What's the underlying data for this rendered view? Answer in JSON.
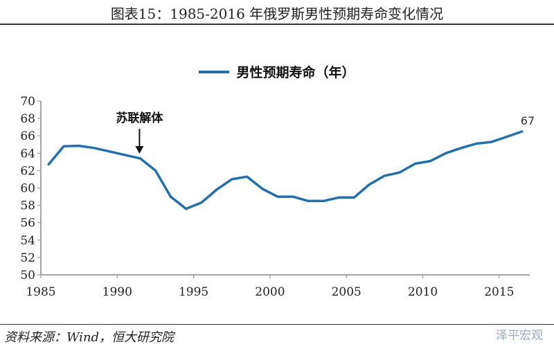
{
  "title": "图表15：1985-2016 年俄罗斯男性预期寿命变化情况",
  "source": "资料来源：Wind，恒大研究院",
  "watermark": "泽平宏观",
  "chart_data": {
    "type": "line",
    "title": "",
    "xlabel": "",
    "ylabel": "",
    "legend": "top-center",
    "x": [
      1985,
      1986,
      1987,
      1988,
      1989,
      1990,
      1991,
      1992,
      1993,
      1994,
      1995,
      1996,
      1997,
      1998,
      1999,
      2000,
      2001,
      2002,
      2003,
      2004,
      2005,
      2006,
      2007,
      2008,
      2009,
      2010,
      2011,
      2012,
      2013,
      2014,
      2015,
      2016
    ],
    "series": [
      {
        "name": "男性预期寿命（年）",
        "color": "#1f6fb4",
        "values": [
          62.7,
          64.8,
          64.85,
          64.6,
          64.2,
          63.8,
          63.4,
          62.0,
          59.0,
          57.6,
          58.3,
          59.8,
          61.0,
          61.3,
          59.9,
          59.0,
          59.0,
          58.5,
          58.5,
          58.9,
          58.9,
          60.4,
          61.4,
          61.8,
          62.8,
          63.1,
          64.0,
          64.6,
          65.1,
          65.3,
          65.9,
          66.5
        ]
      }
    ],
    "ylim": [
      50,
      70
    ],
    "yticks": [
      "50",
      "52",
      "54",
      "56",
      "58",
      "60",
      "62",
      "64",
      "66",
      "68",
      "70"
    ],
    "xticks": [
      "1985",
      "1990",
      "1995",
      "2000",
      "2005",
      "2010",
      "2015"
    ],
    "xlim": [
      1985,
      2017
    ],
    "grid": false,
    "annotations": [
      {
        "text": "苏联解体",
        "x": 1991,
        "arrow": true
      },
      {
        "text": "67",
        "x": 2016
      }
    ]
  }
}
